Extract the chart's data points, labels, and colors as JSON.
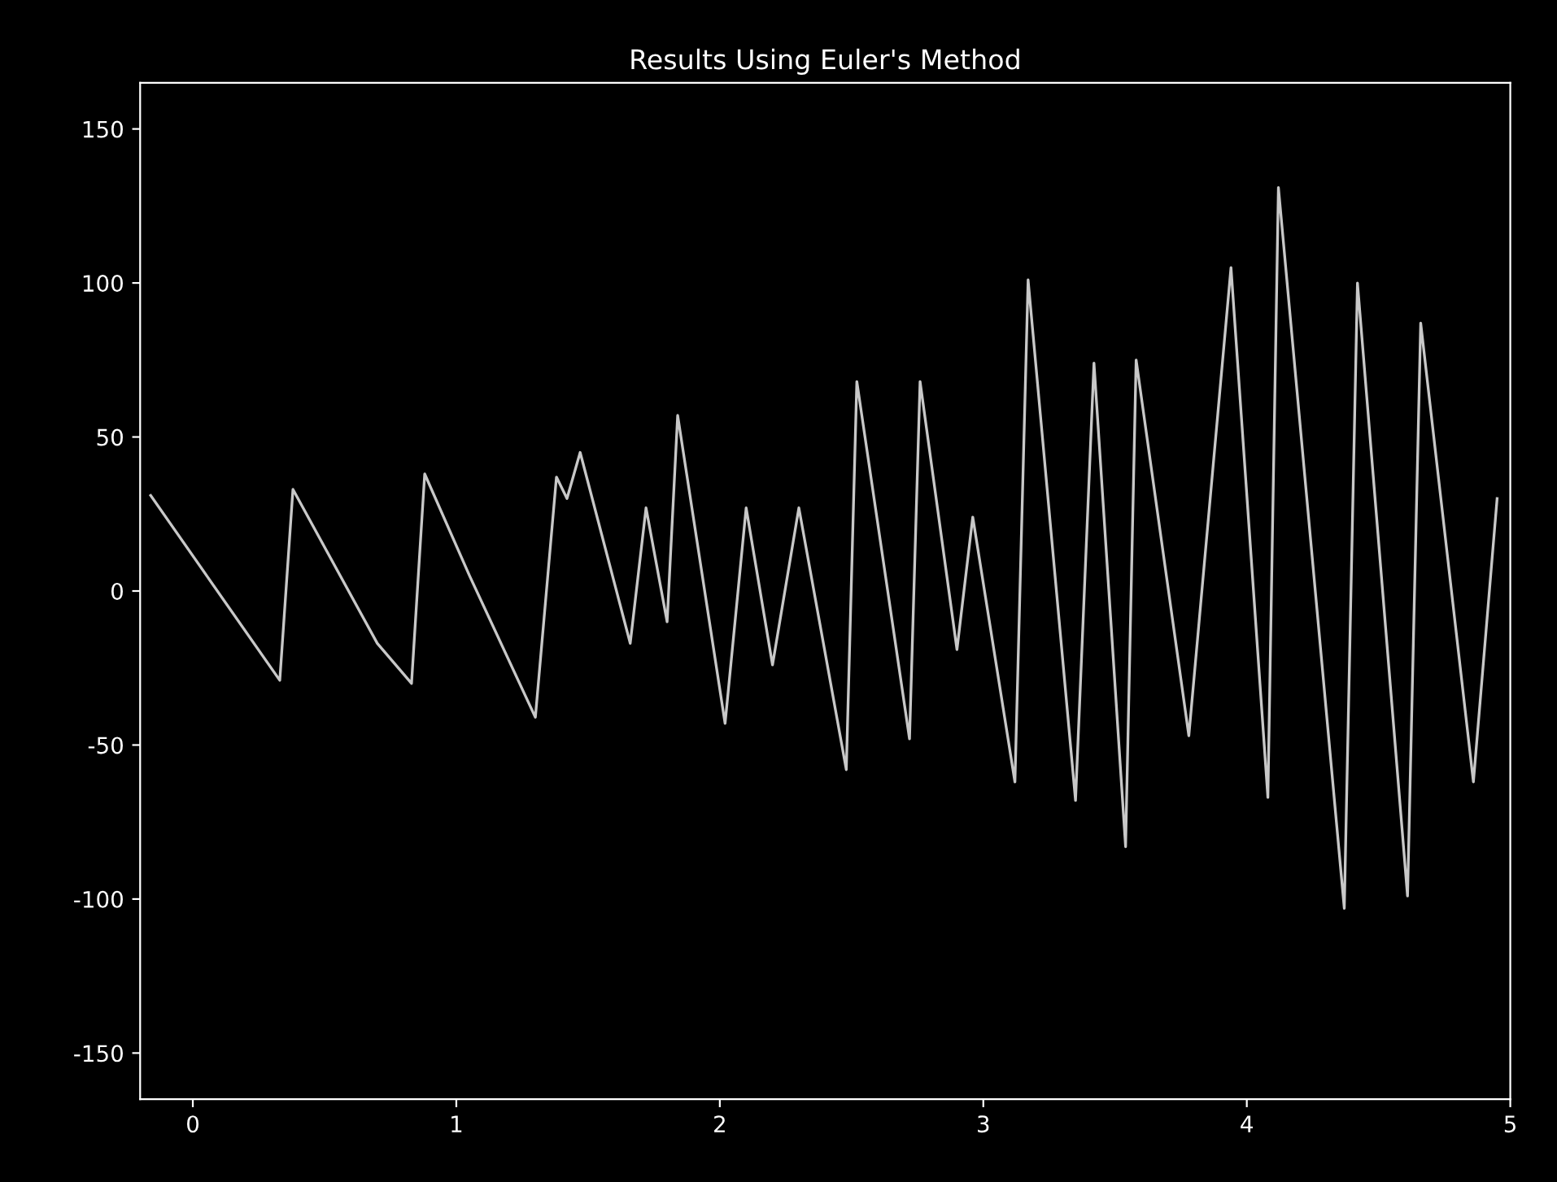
{
  "chart_data": {
    "type": "line",
    "title": "Results Using Euler's Method",
    "x": [
      -0.16,
      0.33,
      0.38,
      0.7,
      0.83,
      0.88,
      1.05,
      1.3,
      1.38,
      1.42,
      1.47,
      1.66,
      1.72,
      1.8,
      1.84,
      2.02,
      2.1,
      2.2,
      2.3,
      2.48,
      2.52,
      2.72,
      2.76,
      2.9,
      2.96,
      3.12,
      3.17,
      3.35,
      3.42,
      3.54,
      3.58,
      3.78,
      3.94,
      4.08,
      4.12,
      4.37,
      4.42,
      4.61,
      4.66,
      4.86,
      4.95
    ],
    "values": [
      31,
      -29,
      33,
      -17,
      -30,
      38,
      5,
      -41,
      37,
      30,
      45,
      -17,
      27,
      -10,
      57,
      -43,
      27,
      -24,
      27,
      -58,
      68,
      -48,
      68,
      -19,
      24,
      -62,
      101,
      -68,
      74,
      -83,
      75,
      -47,
      105,
      -67,
      131,
      -103,
      100,
      -99,
      87,
      -62,
      30
    ],
    "color": "#c8c8c8",
    "xlim": [
      -0.2,
      5
    ],
    "xticks": [
      0,
      1,
      2,
      3,
      4,
      5
    ],
    "ylim": [
      -165,
      165
    ],
    "yticks": [
      -150,
      -100,
      -50,
      0,
      50,
      100,
      150
    ],
    "grid": false,
    "legend": false
  }
}
